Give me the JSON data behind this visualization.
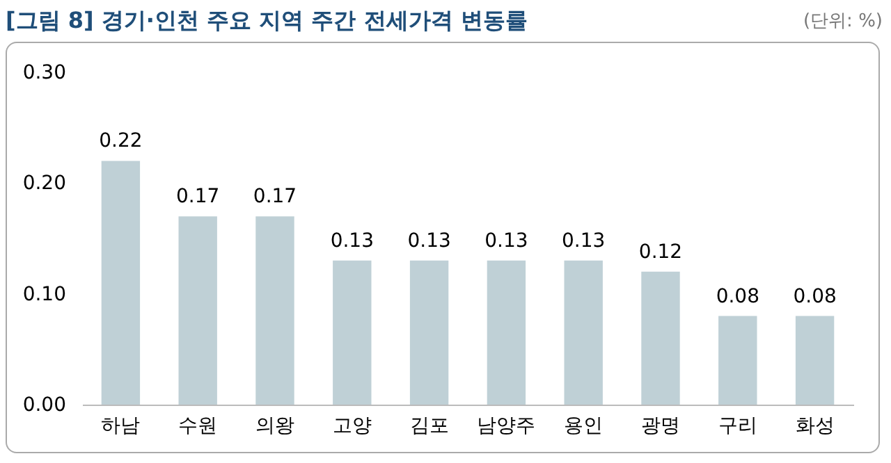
{
  "chart_data": {
    "type": "bar",
    "title": "[그림 8] 경기·인천 주요 지역 주간 전세가격 변동률",
    "annotations": [
      "(단위: %)"
    ],
    "categories": [
      "하남",
      "수원",
      "의왕",
      "고양",
      "김포",
      "남양주",
      "용인",
      "광명",
      "구리",
      "화성"
    ],
    "values": [
      0.22,
      0.17,
      0.17,
      0.13,
      0.13,
      0.13,
      0.13,
      0.12,
      0.08,
      0.08
    ],
    "color": "#bfd0d6",
    "data_labels": true,
    "grid": false,
    "ylim": [
      0,
      0.3
    ],
    "yticks": [
      {
        "value": 0,
        "label": "0.00"
      },
      {
        "value": 0.1,
        "label": "0.10"
      },
      {
        "value": 0.2,
        "label": "0.20"
      },
      {
        "value": 0.3,
        "label": "0.30"
      }
    ]
  }
}
